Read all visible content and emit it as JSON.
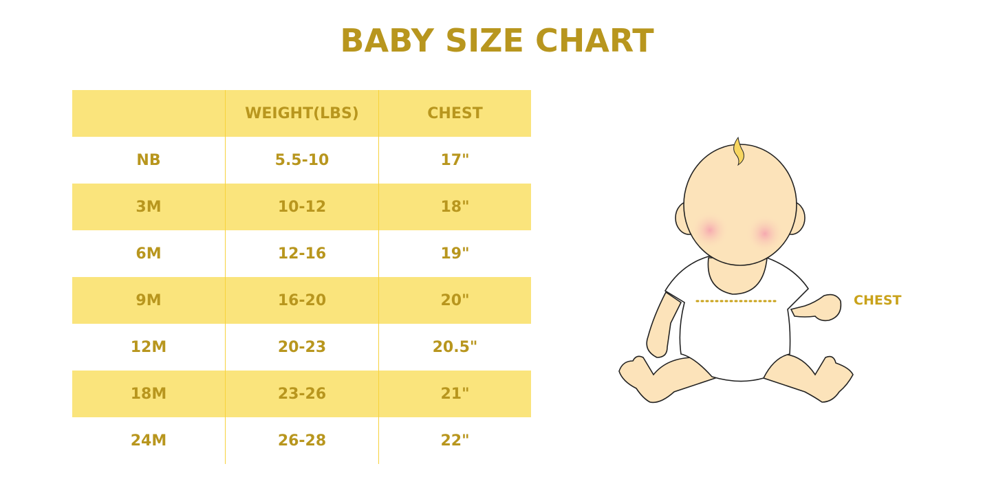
{
  "title": "BABY SIZE CHART",
  "table": {
    "headers": [
      "",
      "WEIGHT(LBS)",
      "CHEST"
    ],
    "rows": [
      [
        "NB",
        "5.5-10",
        "17\""
      ],
      [
        "3M",
        "10-12",
        "18\""
      ],
      [
        "6M",
        "12-16",
        "19\""
      ],
      [
        "9M",
        "16-20",
        "20\""
      ],
      [
        "12M",
        "20-23",
        "20.5\""
      ],
      [
        "18M",
        "23-26",
        "21\""
      ],
      [
        "24M",
        "26-28",
        "22\""
      ]
    ]
  },
  "illustration": {
    "chest_label": "CHEST"
  },
  "colors": {
    "accent": "#B8961E",
    "band": "#FAE47C",
    "divider": "#F7D23C",
    "skin": "#FCE3BA"
  }
}
